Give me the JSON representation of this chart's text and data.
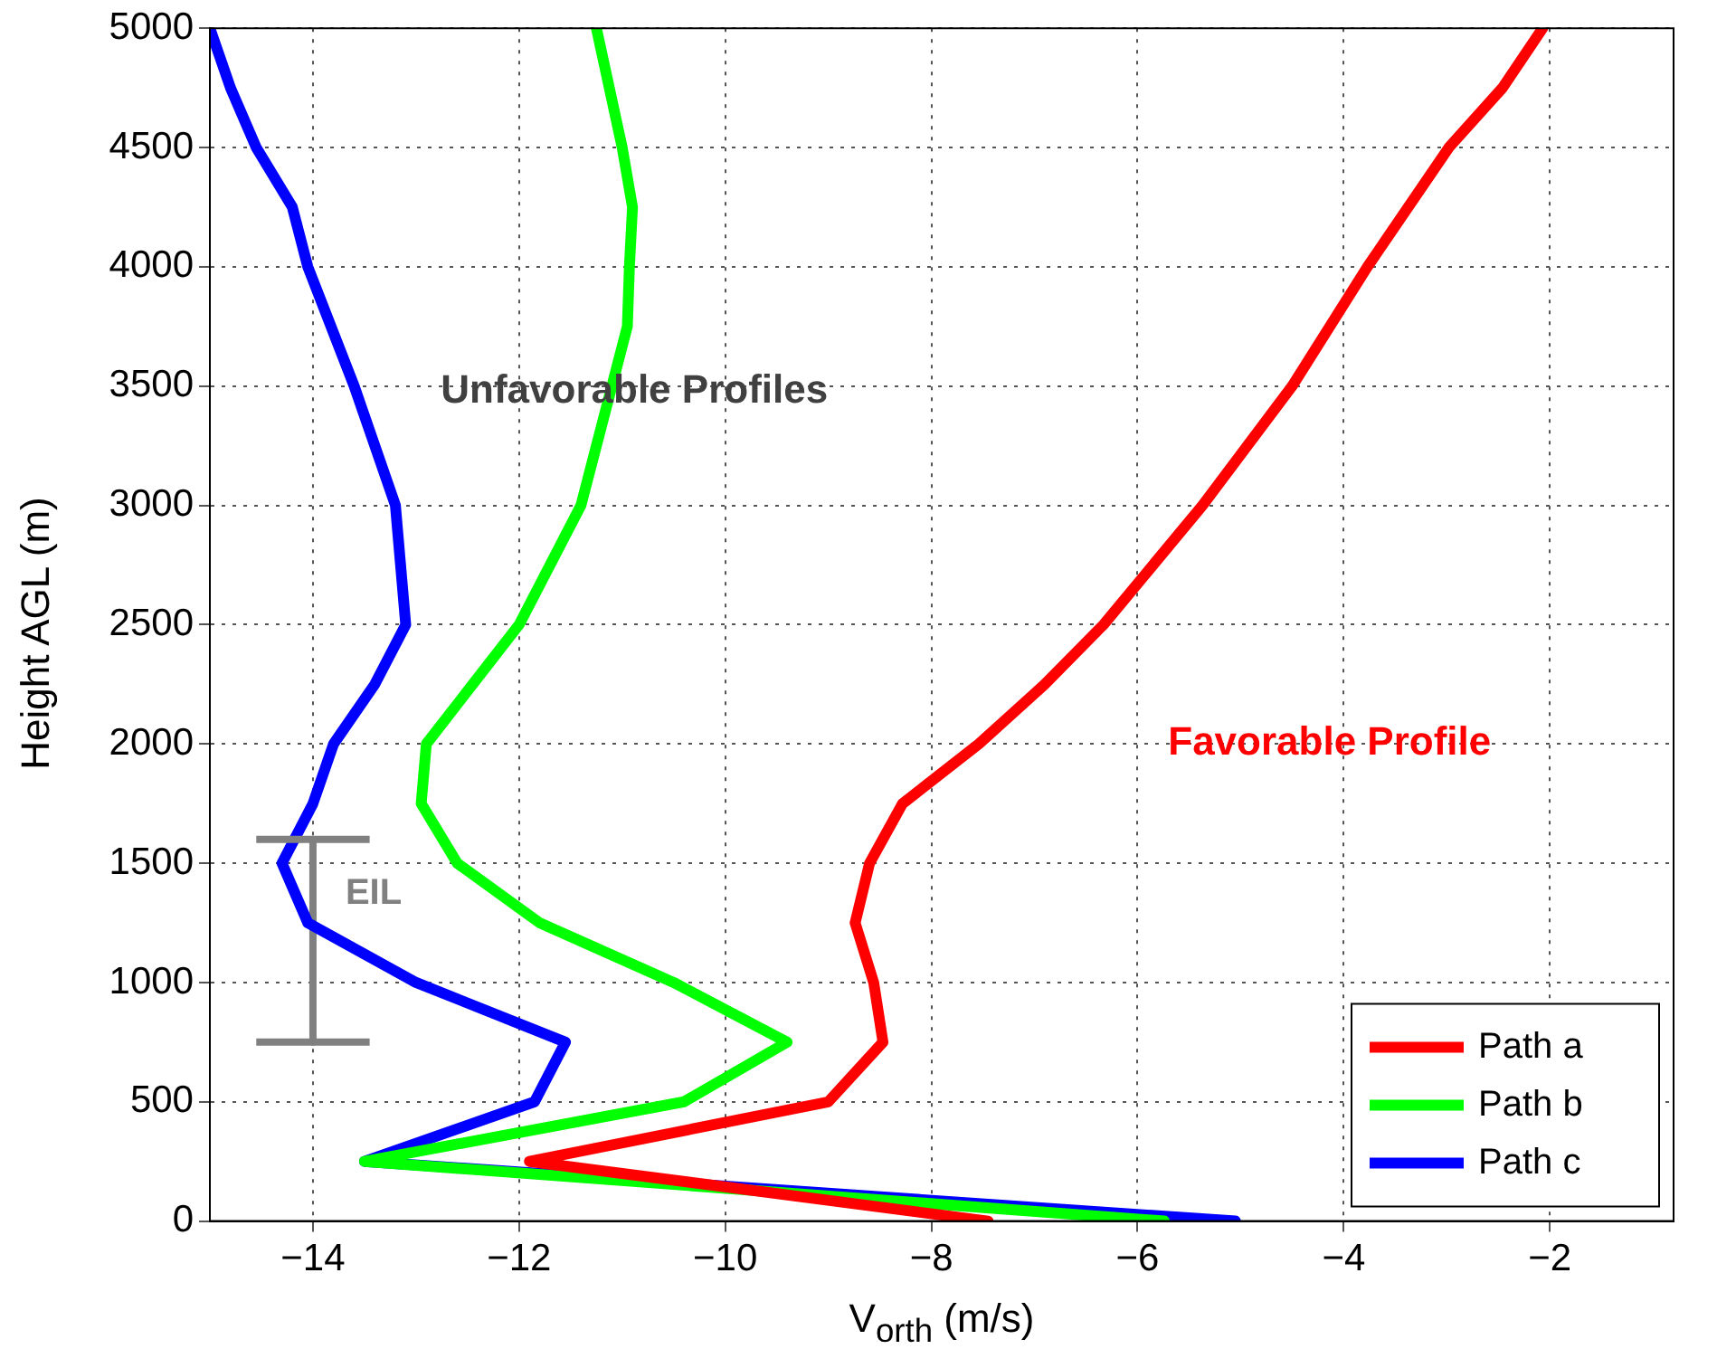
{
  "chart_data": {
    "type": "line",
    "xlabel": "V$_{orth}$ (m/s)",
    "ylabel": "Height AGL (m)",
    "xlim": [
      -15,
      -0.8
    ],
    "xticks": [
      -14,
      -12,
      -10,
      -8,
      -6,
      -4,
      -2
    ],
    "ylim": [
      0,
      5000
    ],
    "yticks": [
      0,
      500,
      1000,
      1500,
      2000,
      2500,
      3000,
      3500,
      4000,
      4500,
      5000
    ],
    "grid": true,
    "legend": "bottom right",
    "marker": "none",
    "line_style": "solid",
    "series": [
      {
        "name": "Path a",
        "color": "#ff0000",
        "x": [
          -7.45,
          -11.9,
          -9.0,
          -8.47,
          -8.56,
          -8.74,
          -8.6,
          -8.28,
          -7.54,
          -6.9,
          -6.33,
          -5.37,
          -4.5,
          -3.77,
          -2.98,
          -2.46,
          -2.07
        ],
        "values": [
          0,
          250,
          500,
          750,
          1000,
          1250,
          1500,
          1750,
          2000,
          2250,
          2500,
          3000,
          3500,
          4000,
          4500,
          4750,
          5000
        ]
      },
      {
        "name": "Path b",
        "color": "#00ff00",
        "x": [
          -5.74,
          -13.5,
          -10.4,
          -9.4,
          -10.5,
          -11.8,
          -12.6,
          -12.95,
          -12.9,
          -12.0,
          -11.4,
          -11.1,
          -10.95,
          -10.93,
          -10.9,
          -11.0,
          -11.25
        ],
        "values": [
          0,
          250,
          500,
          750,
          1000,
          1250,
          1500,
          1750,
          2000,
          2500,
          3000,
          3500,
          3750,
          4000,
          4250,
          4500,
          5000
        ]
      },
      {
        "name": "Path c",
        "color": "#0000ff",
        "x": [
          -5.05,
          -13.5,
          -11.85,
          -11.55,
          -13.0,
          -14.05,
          -14.3,
          -14.0,
          -13.8,
          -13.4,
          -13.1,
          -13.2,
          -13.6,
          -14.05,
          -14.2,
          -14.55,
          -14.8,
          -15.0
        ],
        "values": [
          0,
          250,
          500,
          750,
          1000,
          1250,
          1500,
          1750,
          2000,
          2250,
          2500,
          3000,
          3500,
          4000,
          4250,
          4500,
          4750,
          5000
        ]
      },
      {
        "name": "EIL",
        "color": "#808080",
        "x": [
          -14,
          -14
        ],
        "values": [
          750,
          1600
        ],
        "xerrors": [
          0.55,
          0.55
        ]
      }
    ],
    "annotations": [
      "Unfavorable Profiles",
      "Favorable Profile"
    ]
  }
}
